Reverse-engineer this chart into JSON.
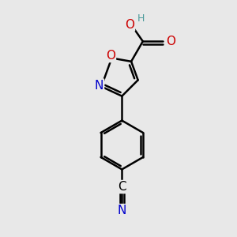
{
  "bg_color": "#e8e8e8",
  "bond_color": "#000000",
  "bond_width": 1.8,
  "atom_colors": {
    "O": "#cc0000",
    "N": "#0000cc",
    "C": "#000000",
    "H": "#4a9a9a"
  },
  "font_size_atom": 11,
  "font_size_H": 9,
  "xlim": [
    0,
    10
  ],
  "ylim": [
    0,
    10
  ]
}
